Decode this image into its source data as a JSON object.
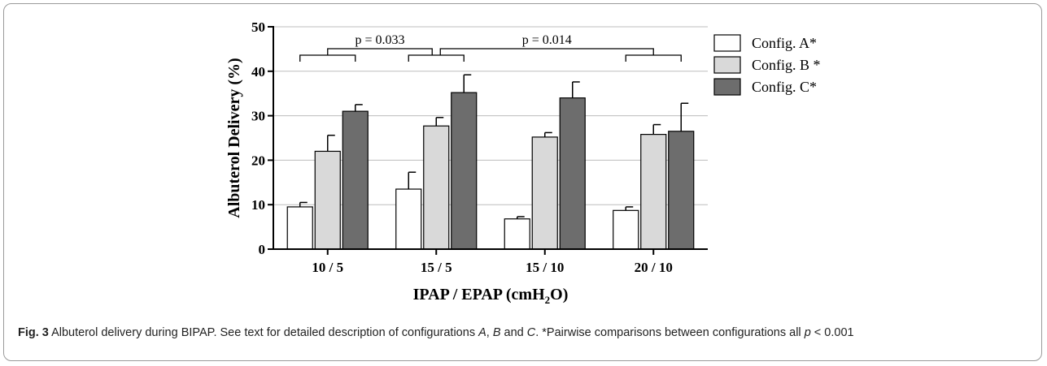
{
  "chart_data": {
    "type": "bar",
    "xlabel_main": "IPAP / EPAP (cmH",
    "xlabel_sub": "2",
    "xlabel_end": "O)",
    "ylabel": "Albuterol Delivery (%)",
    "ylim": [
      0,
      50
    ],
    "yticks": [
      "0",
      "10",
      "20",
      "30",
      "40",
      "50"
    ],
    "categories": [
      "10 / 5",
      "15 / 5",
      "15 / 10",
      "20 / 10"
    ],
    "series": [
      {
        "name": "Config. A*",
        "color": "#ffffff",
        "values": [
          9.5,
          13.5,
          6.8,
          8.7
        ],
        "errors": [
          1.0,
          3.8,
          0.5,
          0.8
        ]
      },
      {
        "name": "Config. B *",
        "color": "#d9d9d9",
        "values": [
          22.0,
          27.7,
          25.2,
          25.8
        ],
        "errors": [
          3.6,
          1.9,
          1.0,
          2.2
        ]
      },
      {
        "name": "Config. C*",
        "color": "#6d6d6d",
        "values": [
          31.0,
          35.2,
          34.0,
          26.5
        ],
        "errors": [
          1.5,
          4.0,
          3.6,
          6.3
        ]
      }
    ],
    "grid": "horizontal",
    "legend_position": "top-right",
    "annotations": [
      {
        "text": "p = 0.033",
        "between": [
          "10 / 5",
          "15 / 5"
        ]
      },
      {
        "text": "p = 0.014",
        "between": [
          "15 / 5",
          "20 / 10"
        ]
      }
    ]
  },
  "caption": {
    "label": "Fig. 3",
    "part1": " Albuterol delivery during BIPAP. See text for detailed description of configurations ",
    "a": "A",
    "sep1": ", ",
    "b": "B",
    "sep2": " and ",
    "c": "C",
    "part2": ". *Pairwise comparisons between configurations all ",
    "p": "p",
    "part3": " < 0.001"
  }
}
